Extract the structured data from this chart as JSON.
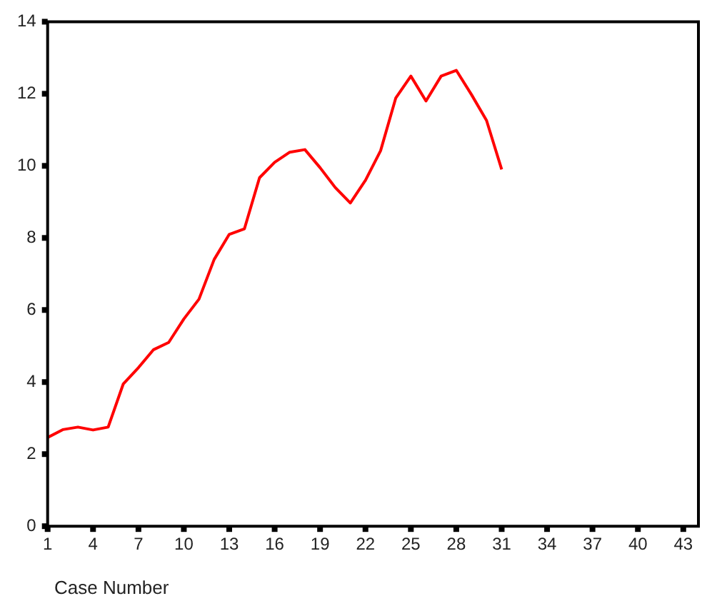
{
  "chart_data": {
    "type": "line",
    "xlabel": "Case Number",
    "x": [
      1,
      2,
      3,
      4,
      5,
      6,
      7,
      8,
      9,
      10,
      11,
      12,
      13,
      14,
      15,
      16,
      17,
      18,
      19,
      20,
      21,
      22,
      23,
      24,
      25,
      26,
      27,
      28,
      29,
      30,
      31
    ],
    "series": [
      {
        "color": "#ff0000",
        "values": [
          2.46,
          2.68,
          2.75,
          2.67,
          2.75,
          3.95,
          4.4,
          4.9,
          5.1,
          5.75,
          6.3,
          7.4,
          8.1,
          8.25,
          9.67,
          10.1,
          10.38,
          10.45,
          9.95,
          9.4,
          8.97,
          9.6,
          10.42,
          11.88,
          12.49,
          11.8,
          12.49,
          12.65,
          11.98,
          11.26,
          9.9
        ]
      }
    ],
    "xlim": [
      1,
      44
    ],
    "xticks": [
      1,
      4,
      7,
      10,
      13,
      16,
      19,
      22,
      25,
      28,
      31,
      34,
      37,
      40,
      43
    ],
    "ylim": [
      0,
      14
    ],
    "yticks": [
      0,
      2,
      4,
      6,
      8,
      10,
      12,
      14
    ],
    "grid": false,
    "legend": false,
    "marker": "none",
    "line_style": "solid"
  }
}
